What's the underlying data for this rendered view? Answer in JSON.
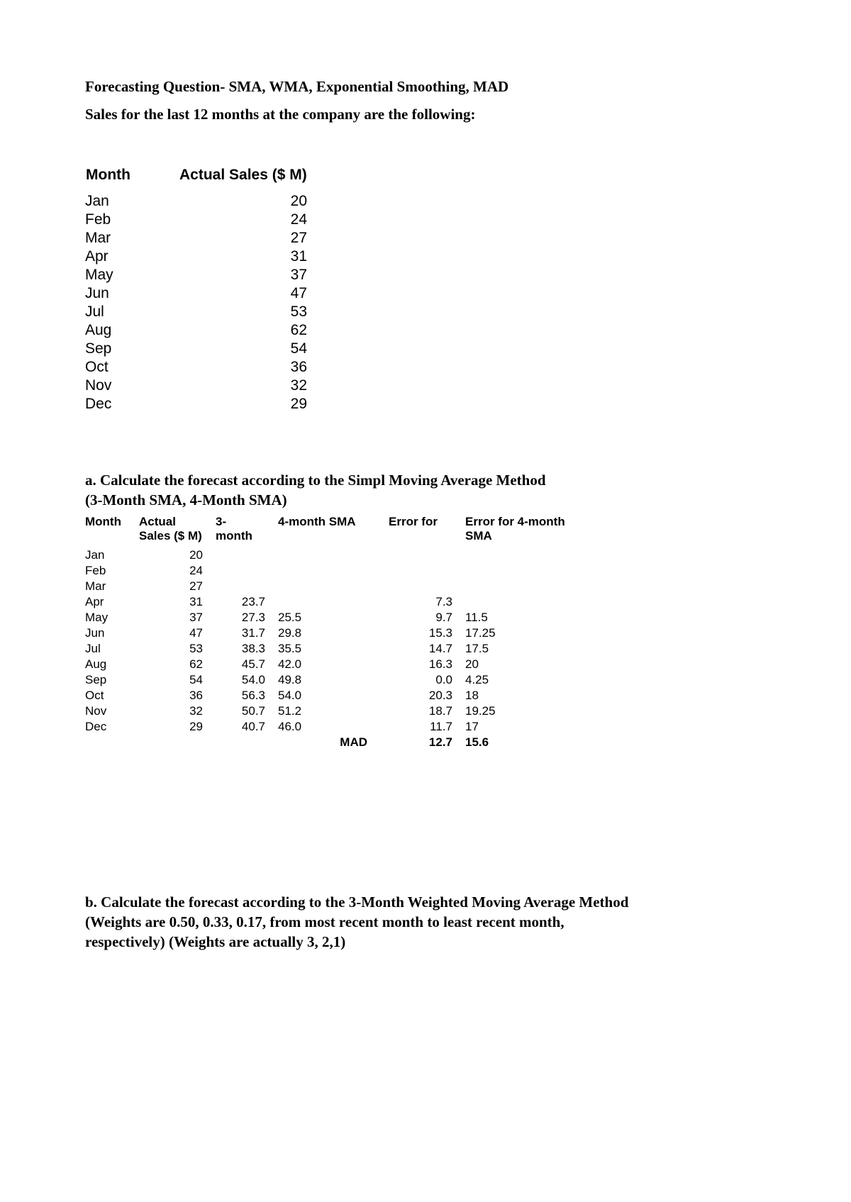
{
  "header": {
    "title": "Forecasting Question- SMA, WMA, Exponential Smoothing, MAD",
    "subtitle": "Sales for the last 12 months at the company are the following:"
  },
  "sales_table": {
    "columns": [
      "Month",
      "Actual Sales ($ M)"
    ],
    "rows": [
      {
        "month": "Jan",
        "value": "20"
      },
      {
        "month": "Feb",
        "value": "24"
      },
      {
        "month": "Mar",
        "value": "27"
      },
      {
        "month": "Apr",
        "value": "31"
      },
      {
        "month": "May",
        "value": "37"
      },
      {
        "month": "Jun",
        "value": "47"
      },
      {
        "month": "Jul",
        "value": "53"
      },
      {
        "month": "Aug",
        "value": "62"
      },
      {
        "month": "Sep",
        "value": "54"
      },
      {
        "month": "Oct",
        "value": "36"
      },
      {
        "month": "Nov",
        "value": "32"
      },
      {
        "month": "Dec",
        "value": "29"
      }
    ]
  },
  "section_a": {
    "line1": "a. Calculate the forecast according to the Simpl Moving Average Method",
    "line2": "(3-Month SMA, 4-Month SMA)"
  },
  "calc_table": {
    "headers": {
      "month": "Month",
      "actual": "Actual Sales ($ M)",
      "sma3": "3- month",
      "sma4": "4-month SMA",
      "err3": "Error for",
      "err4": "Error for 4-month SMA"
    },
    "rows": [
      {
        "month": "Jan",
        "act": "20",
        "sma3": "",
        "sma4": "",
        "err3": "",
        "err4": ""
      },
      {
        "month": "Feb",
        "act": "24",
        "sma3": "",
        "sma4": "",
        "err3": "",
        "err4": ""
      },
      {
        "month": "Mar",
        "act": "27",
        "sma3": "",
        "sma4": "",
        "err3": "",
        "err4": ""
      },
      {
        "month": "Apr",
        "act": "31",
        "sma3": "23.7",
        "sma4": "",
        "err3": "7.3",
        "err4": ""
      },
      {
        "month": "May",
        "act": "37",
        "sma3": "27.3",
        "sma4": "25.5",
        "err3": "9.7",
        "err4": "11.5"
      },
      {
        "month": "Jun",
        "act": "47",
        "sma3": "31.7",
        "sma4": "29.8",
        "err3": "15.3",
        "err4": "17.25"
      },
      {
        "month": "Jul",
        "act": "53",
        "sma3": "38.3",
        "sma4": "35.5",
        "err3": "14.7",
        "err4": "17.5"
      },
      {
        "month": "Aug",
        "act": "62",
        "sma3": "45.7",
        "sma4": "42.0",
        "err3": "16.3",
        "err4": "20"
      },
      {
        "month": "Sep",
        "act": "54",
        "sma3": "54.0",
        "sma4": "49.8",
        "err3": "0.0",
        "err4": "4.25"
      },
      {
        "month": "Oct",
        "act": "36",
        "sma3": "56.3",
        "sma4": "54.0",
        "err3": "20.3",
        "err4": "18"
      },
      {
        "month": "Nov",
        "act": "32",
        "sma3": "50.7",
        "sma4": "51.2",
        "err3": "18.7",
        "err4": "19.25"
      },
      {
        "month": "Dec",
        "act": "29",
        "sma3": "40.7",
        "sma4": "46.0",
        "err3": "11.7",
        "err4": "17"
      }
    ],
    "mad": {
      "label": "MAD",
      "err3": "12.7",
      "err4": "15.6"
    }
  },
  "section_b": {
    "line1": "b. Calculate the forecast according to the 3-Month Weighted Moving Average Method",
    "line2": "(Weights are 0.50, 0.33, 0.17, from most recent month to least recent month,",
    "line3": "respectively) (Weights are actually 3, 2,1)"
  }
}
